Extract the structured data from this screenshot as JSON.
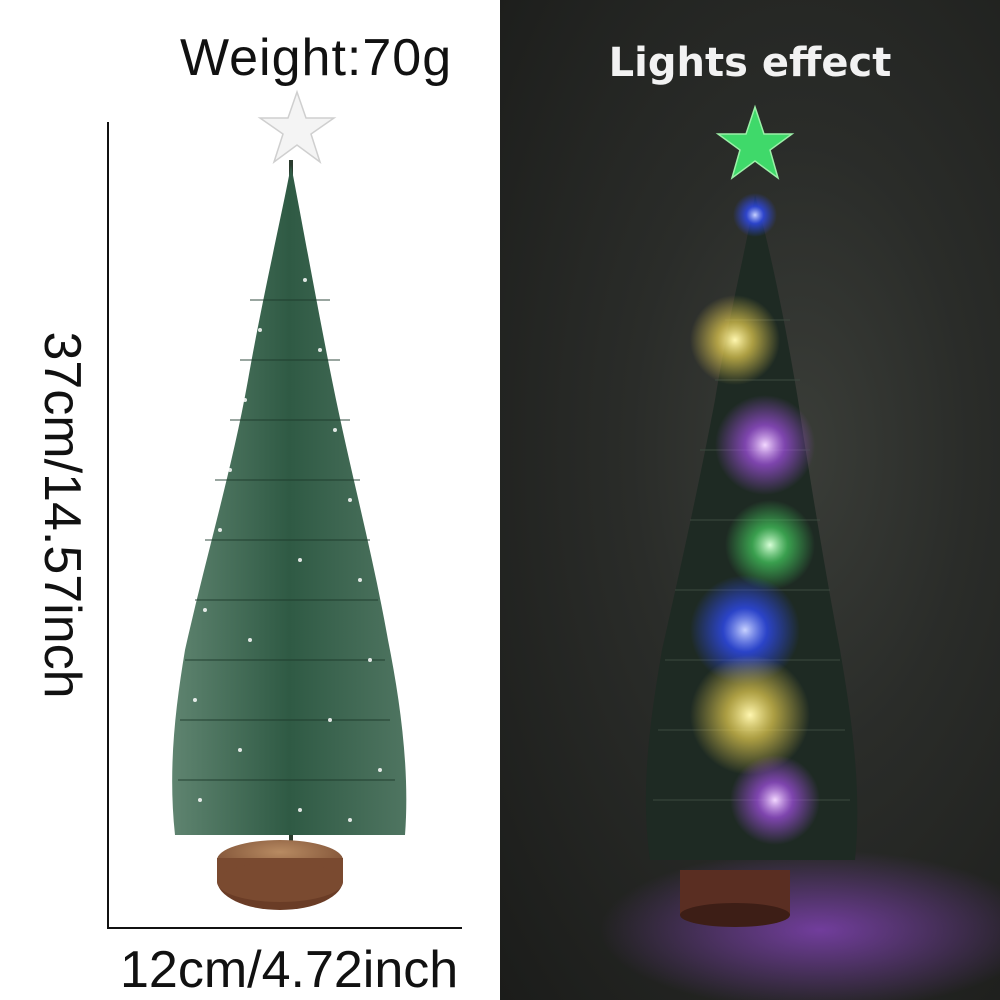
{
  "left": {
    "weight_text": "Weight:70g",
    "height_text": "37cm/14.57inch",
    "width_text": "12cm/4.72inch"
  },
  "right": {
    "title": "Lights effect"
  },
  "colors": {
    "tree_green": "#2f5a44",
    "star_white": "#f4f4f4",
    "star_green": "#3fd96a",
    "light_yellow": "#f3e06a",
    "light_purple": "#b45cf0",
    "light_green": "#4fe06a",
    "light_blue": "#3a5cff",
    "base_wood": "#7a4a30"
  },
  "icons": [
    "star-topper-icon",
    "tree-icon",
    "wood-base-icon"
  ]
}
